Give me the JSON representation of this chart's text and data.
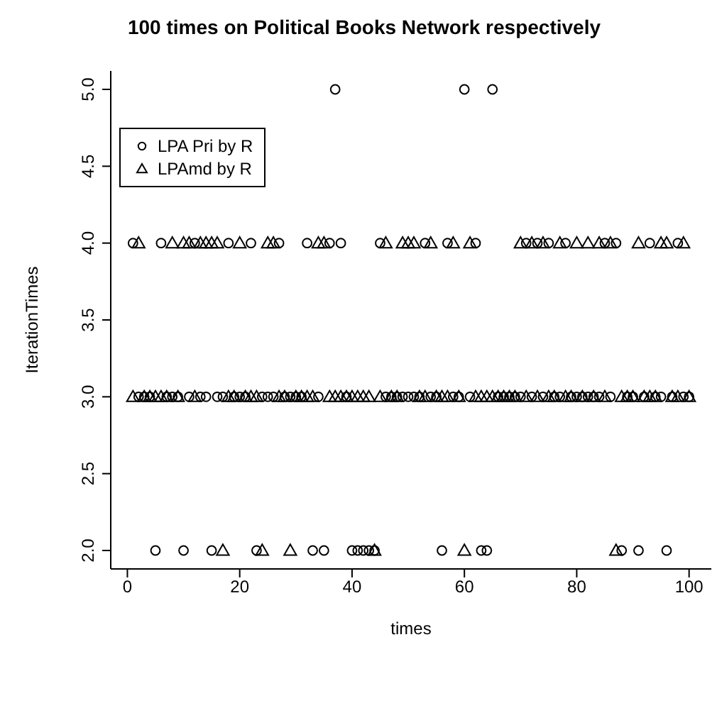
{
  "chart_data": {
    "type": "scatter",
    "title": "100 times on Political Books Network respectively",
    "xlabel": "times",
    "ylabel": "IterationTimes",
    "x": [
      1,
      2,
      3,
      4,
      5,
      6,
      7,
      8,
      9,
      10,
      11,
      12,
      13,
      14,
      15,
      16,
      17,
      18,
      19,
      20,
      21,
      22,
      23,
      24,
      25,
      26,
      27,
      28,
      29,
      30,
      31,
      32,
      33,
      34,
      35,
      36,
      37,
      38,
      39,
      40,
      41,
      42,
      43,
      44,
      45,
      46,
      47,
      48,
      49,
      50,
      51,
      52,
      53,
      54,
      55,
      56,
      57,
      58,
      59,
      60,
      61,
      62,
      63,
      64,
      65,
      66,
      67,
      68,
      69,
      70,
      71,
      72,
      73,
      74,
      75,
      76,
      77,
      78,
      79,
      80,
      81,
      82,
      83,
      84,
      85,
      86,
      87,
      88,
      89,
      90,
      91,
      92,
      93,
      94,
      95,
      96,
      97,
      98,
      99,
      100
    ],
    "series": [
      {
        "name": "LPA Pri by R",
        "color": "#000000",
        "marker": "circle",
        "values": [
          4,
          3,
          3,
          3,
          2,
          4,
          3,
          3,
          3,
          2,
          3,
          4,
          3,
          3,
          2,
          3,
          3,
          4,
          3,
          3,
          3,
          4,
          2,
          3,
          3,
          3,
          4,
          3,
          3,
          3,
          3,
          4,
          2,
          3,
          2,
          4,
          5,
          4,
          3,
          2,
          2,
          2,
          2,
          2,
          4,
          3,
          3,
          3,
          3,
          3,
          3,
          3,
          4,
          3,
          3,
          2,
          4,
          3,
          3,
          5,
          3,
          4,
          2,
          2,
          5,
          3,
          3,
          3,
          3,
          3,
          4,
          3,
          4,
          3,
          4,
          3,
          3,
          4,
          3,
          3,
          3,
          3,
          3,
          3,
          4,
          3,
          4,
          2,
          3,
          3,
          2,
          3,
          4,
          3,
          3,
          2,
          3,
          4,
          3,
          3
        ]
      },
      {
        "name": "LPAmd by R",
        "color": "#000000",
        "marker": "triangle",
        "values": [
          3,
          4,
          3,
          3,
          3,
          3,
          3,
          4,
          3,
          4,
          4,
          3,
          4,
          4,
          4,
          4,
          2,
          3,
          3,
          4,
          3,
          3,
          3,
          2,
          4,
          4,
          3,
          3,
          2,
          3,
          3,
          3,
          3,
          4,
          4,
          3,
          3,
          3,
          3,
          3,
          3,
          3,
          3,
          2,
          3,
          4,
          3,
          3,
          4,
          4,
          4,
          3,
          3,
          4,
          3,
          3,
          3,
          4,
          3,
          2,
          4,
          3,
          3,
          3,
          3,
          3,
          3,
          3,
          3,
          4,
          3,
          4,
          3,
          4,
          3,
          3,
          4,
          3,
          3,
          4,
          3,
          4,
          3,
          4,
          3,
          4,
          2,
          3,
          3,
          3,
          4,
          3,
          3,
          3,
          4,
          4,
          3,
          3,
          4,
          3
        ]
      }
    ],
    "xlim": [
      -2.96,
      103.96
    ],
    "xticks": [
      0,
      20,
      40,
      60,
      80,
      100
    ],
    "ylim": [
      1.88,
      5.12
    ],
    "yticks": [
      {
        "value": 2,
        "label": "2.0"
      },
      {
        "value": 2.5,
        "label": "2.5"
      },
      {
        "value": 3,
        "label": "3.0"
      },
      {
        "value": 3.5,
        "label": "3.5"
      },
      {
        "value": 4,
        "label": "4.0"
      },
      {
        "value": 4.5,
        "label": "4.5"
      },
      {
        "value": 5,
        "label": "5.0"
      }
    ],
    "legend": "top left",
    "grid": false
  }
}
